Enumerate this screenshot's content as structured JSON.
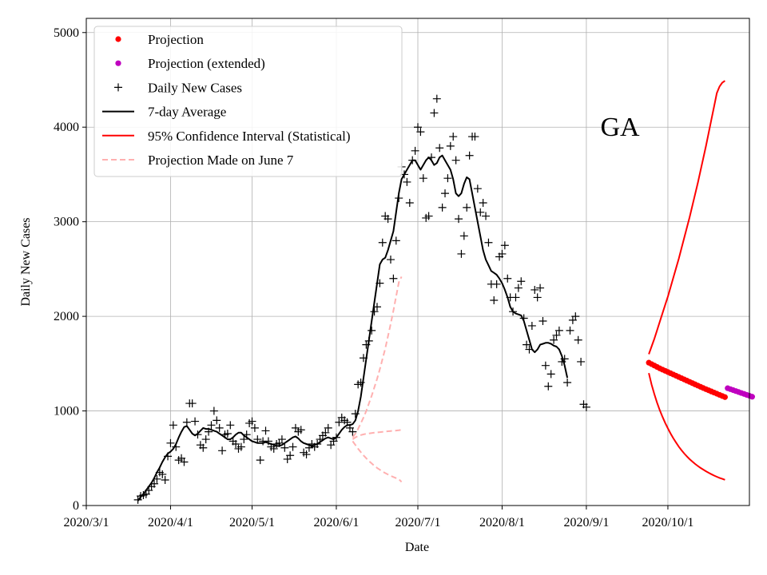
{
  "chart_data": {
    "type": "line",
    "region_label": "GA",
    "xlabel": "Date",
    "ylabel": "Daily New Cases",
    "x_domain": [
      "2020-03-01",
      "2020-10-31"
    ],
    "ylim": [
      0,
      5150
    ],
    "grid": true,
    "x_ticks": [
      {
        "date": "2020-03-01",
        "label": "2020/3/1"
      },
      {
        "date": "2020-04-01",
        "label": "2020/4/1"
      },
      {
        "date": "2020-05-01",
        "label": "2020/5/1"
      },
      {
        "date": "2020-06-01",
        "label": "2020/6/1"
      },
      {
        "date": "2020-07-01",
        "label": "2020/7/1"
      },
      {
        "date": "2020-08-01",
        "label": "2020/8/1"
      },
      {
        "date": "2020-09-01",
        "label": "2020/9/1"
      },
      {
        "date": "2020-10-01",
        "label": "2020/10/1"
      }
    ],
    "y_ticks": [
      {
        "value": 0,
        "label": "0"
      },
      {
        "value": 1000,
        "label": "1000"
      },
      {
        "value": 2000,
        "label": "2000"
      },
      {
        "value": 3000,
        "label": "3000"
      },
      {
        "value": 4000,
        "label": "4000"
      },
      {
        "value": 5000,
        "label": "5000"
      }
    ],
    "legend": {
      "placement": "top-left",
      "entries": [
        {
          "key": "projection",
          "label": "Projection",
          "color": "#ff0000",
          "style": "dot"
        },
        {
          "key": "projection_ext",
          "label": "Projection (extended)",
          "color": "#bf00bf",
          "style": "dot"
        },
        {
          "key": "daily",
          "label": "Daily New Cases",
          "color": "#000000",
          "style": "plus"
        },
        {
          "key": "avg",
          "label": "7-day Average",
          "color": "#000000",
          "style": "line"
        },
        {
          "key": "ci",
          "label": "95% Confidence Interval (Statistical)",
          "color": "#ff0000",
          "style": "line"
        },
        {
          "key": "june7",
          "label": "Projection Made on June 7",
          "color": "#ffb0b0",
          "style": "dash"
        }
      ]
    },
    "daily_new_cases": {
      "start_date": "2020-03-20",
      "values": [
        60,
        100,
        110,
        120,
        160,
        200,
        230,
        280,
        350,
        330,
        270,
        520,
        660,
        850,
        620,
        480,
        500,
        460,
        880,
        1080,
        1080,
        890,
        750,
        640,
        610,
        700,
        780,
        850,
        1000,
        900,
        820,
        580,
        750,
        760,
        850,
        680,
        650,
        600,
        620,
        700,
        750,
        870,
        890,
        820,
        700,
        480,
        680,
        790,
        680,
        620,
        600,
        650,
        660,
        700,
        610,
        490,
        530,
        620,
        820,
        780,
        800,
        560,
        540,
        610,
        650,
        620,
        650,
        700,
        740,
        770,
        820,
        640,
        680,
        720,
        880,
        930,
        900,
        880,
        820,
        780,
        970,
        1280,
        1300,
        1560,
        1700,
        1740,
        1850,
        2050,
        2100,
        2350,
        2780,
        3060,
        3030,
        2600,
        2400,
        2800,
        3250,
        3580,
        3500,
        3420,
        3200,
        3650,
        3750,
        4000,
        3950,
        3460,
        3040,
        3060,
        3680,
        4150,
        4300,
        3780,
        3150,
        3300,
        3460,
        3800,
        3900,
        3650,
        3030,
        2660,
        2850,
        3150,
        3700,
        3900,
        3900,
        3350,
        3100,
        3200,
        3060,
        2780,
        2340,
        2170,
        2340,
        2630,
        2660,
        2750,
        2400,
        2200,
        2050,
        2200,
        2300,
        2370,
        1980,
        1700,
        1650,
        1900,
        2280,
        2200,
        2300,
        1950,
        1480,
        1260,
        1390,
        1750,
        1800,
        1850,
        1520,
        1550,
        1300,
        1850,
        1960,
        2000,
        1750,
        1520,
        1070,
        1040
      ],
      "note": "one value per day"
    },
    "seven_day_average": {
      "start_date": "2020-03-20",
      "values": [
        50,
        90,
        120,
        160,
        200,
        240,
        290,
        350,
        400,
        460,
        510,
        550,
        570,
        600,
        650,
        720,
        780,
        830,
        840,
        800,
        760,
        740,
        760,
        790,
        820,
        810,
        810,
        800,
        790,
        780,
        760,
        740,
        720,
        700,
        700,
        720,
        750,
        770,
        770,
        740,
        720,
        700,
        680,
        670,
        660,
        660,
        660,
        670,
        660,
        650,
        640,
        630,
        630,
        640,
        660,
        680,
        700,
        720,
        730,
        710,
        680,
        660,
        650,
        640,
        630,
        640,
        650,
        670,
        690,
        710,
        720,
        710,
        700,
        720,
        760,
        800,
        830,
        850,
        850,
        860,
        900,
        1000,
        1150,
        1350,
        1550,
        1750,
        1950,
        2150,
        2350,
        2550,
        2600,
        2620,
        2700,
        2800,
        2900,
        3100,
        3300,
        3450,
        3500,
        3550,
        3600,
        3650,
        3650,
        3600,
        3550,
        3600,
        3650,
        3680,
        3650,
        3600,
        3620,
        3680,
        3700,
        3650,
        3600,
        3550,
        3450,
        3300,
        3270,
        3300,
        3400,
        3470,
        3450,
        3300,
        3150,
        3000,
        2850,
        2700,
        2600,
        2540,
        2480,
        2460,
        2440,
        2400,
        2350,
        2280,
        2200,
        2100,
        2050,
        2030,
        2020,
        2010,
        1950,
        1850,
        1750,
        1650,
        1620,
        1650,
        1700,
        1710,
        1720,
        1720,
        1710,
        1690,
        1680,
        1650,
        1580,
        1480,
        1350
      ],
      "note": "one value per day"
    },
    "projection": {
      "start_date": "2020-09-24",
      "values": [
        1510,
        1495,
        1480,
        1465,
        1450,
        1437,
        1424,
        1411,
        1398,
        1385,
        1372,
        1359,
        1346,
        1333,
        1320,
        1307,
        1294,
        1281,
        1268,
        1255,
        1242,
        1230,
        1218,
        1206,
        1194,
        1182,
        1170,
        1158,
        1146
      ]
    },
    "projection_extended": {
      "start_date": "2020-10-23",
      "values": [
        1240,
        1230,
        1220,
        1210,
        1200,
        1190,
        1180,
        1170,
        1160,
        1150
      ]
    },
    "ci_upper": {
      "start_date": "2020-09-24",
      "values": [
        1600,
        1680,
        1760,
        1850,
        1940,
        2030,
        2120,
        2210,
        2310,
        2410,
        2510,
        2610,
        2720,
        2830,
        2940,
        3050,
        3170,
        3290,
        3410,
        3540,
        3670,
        3800,
        3940,
        4080,
        4220,
        4360,
        4430,
        4470,
        4490
      ],
      "extended_from_date": "2020-10-23"
    },
    "ci_lower": {
      "start_date": "2020-09-24",
      "values": [
        1400,
        1280,
        1180,
        1090,
        1010,
        940,
        875,
        815,
        760,
        710,
        665,
        622,
        585,
        550,
        518,
        490,
        464,
        440,
        418,
        398,
        380,
        362,
        346,
        331,
        317,
        304,
        292,
        282,
        272
      ],
      "extended_from_date": "2020-10-23"
    },
    "june7_projection": {
      "start_date": "2020-06-07",
      "central": [
        700,
        720,
        735,
        745,
        752,
        758,
        762,
        766,
        770,
        773,
        776,
        779,
        782,
        785,
        788,
        790,
        793,
        796,
        800
      ],
      "upper": [
        720,
        760,
        810,
        870,
        930,
        1000,
        1080,
        1160,
        1250,
        1340,
        1440,
        1550,
        1660,
        1790,
        1920,
        2060,
        2210,
        2360,
        2420
      ],
      "lower": [
        680,
        640,
        600,
        565,
        530,
        500,
        470,
        445,
        420,
        398,
        378,
        360,
        343,
        328,
        314,
        301,
        290,
        279,
        250
      ]
    }
  }
}
